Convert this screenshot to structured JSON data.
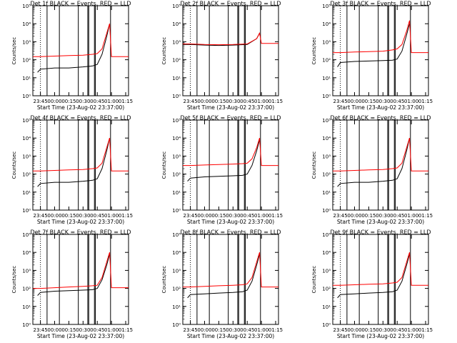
{
  "chart_data": [
    {
      "type": "line",
      "title": "Det 1f BLACK = Events, RED = LLD",
      "xlabel": "Start Time (23-Aug-02 23:37:00)",
      "ylabel": "Counts/sec",
      "yscale": "log",
      "ylim": [
        1,
        100000
      ],
      "xlim": [
        "23:37",
        "01:18"
      ],
      "y_ticks": [
        "10⁰",
        "10¹",
        "10²",
        "10³",
        "10⁴",
        "10⁵"
      ],
      "x_ticks": [
        "23:45",
        "00:00",
        "00:15",
        "00:30",
        "00:45",
        "01:00",
        "01:15"
      ],
      "series": [
        {
          "name": "Events",
          "color": "#000000",
          "x": [
            "23:42",
            "23:45",
            "00:00",
            "00:15",
            "00:30",
            "00:40",
            "00:45",
            "00:50",
            "00:55",
            "00:58"
          ],
          "y": [
            20,
            30,
            35,
            35,
            40,
            45,
            55,
            200,
            2000,
            10000
          ]
        },
        {
          "name": "LLD",
          "color": "#ff0000",
          "x": [
            "23:37",
            "23:45",
            "00:00",
            "00:15",
            "00:30",
            "00:40",
            "00:45",
            "00:50",
            "00:55",
            "00:58",
            "01:00",
            "01:18"
          ],
          "y": [
            150,
            150,
            160,
            170,
            180,
            200,
            220,
            400,
            3000,
            10000,
            150,
            150
          ]
        }
      ]
    },
    {
      "type": "line",
      "title": "Det 2f BLACK = Events, RED = LLD",
      "xlabel": "Start Time (23-Aug-02 23:37:00)",
      "ylabel": "Counts/sec",
      "yscale": "log",
      "ylim": [
        1,
        100000
      ],
      "xlim": [
        "23:37",
        "01:18"
      ],
      "y_ticks": [
        "10⁰",
        "10¹",
        "10²",
        "10³",
        "10⁴",
        "10⁵"
      ],
      "x_ticks": [
        "23:45",
        "00:00",
        "00:15",
        "00:30",
        "00:45",
        "01:00",
        "01:15"
      ],
      "series": [
        {
          "name": "Events",
          "color": "#000000",
          "x": [
            "23:37",
            "23:45",
            "00:00",
            "00:15",
            "00:30",
            "00:45",
            "00:55",
            "00:58"
          ],
          "y": [
            700,
            700,
            650,
            620,
            650,
            700,
            1500,
            3000
          ]
        },
        {
          "name": "LLD",
          "color": "#ff0000",
          "x": [
            "23:37",
            "23:45",
            "00:00",
            "00:15",
            "00:30",
            "00:45",
            "00:55",
            "00:58",
            "01:00",
            "01:18"
          ],
          "y": [
            750,
            750,
            700,
            680,
            700,
            750,
            1500,
            3000,
            800,
            800
          ]
        }
      ]
    },
    {
      "type": "line",
      "title": "Det 3f BLACK = Events, RED = LLD",
      "xlabel": "Start Time (23-Aug-02 23:37:00)",
      "ylabel": "Counts/sec",
      "yscale": "log",
      "ylim": [
        1,
        100000
      ],
      "xlim": [
        "23:37",
        "01:18"
      ],
      "y_ticks": [
        "10⁰",
        "10¹",
        "10²",
        "10³",
        "10⁴",
        "10⁵"
      ],
      "x_ticks": [
        "23:45",
        "00:00",
        "00:15",
        "00:30",
        "00:45",
        "01:00",
        "01:15"
      ],
      "series": [
        {
          "name": "Events",
          "color": "#000000",
          "x": [
            "23:42",
            "23:45",
            "00:00",
            "00:15",
            "00:30",
            "00:40",
            "00:45",
            "00:50",
            "00:55",
            "00:58"
          ],
          "y": [
            40,
            70,
            80,
            85,
            90,
            95,
            110,
            300,
            2500,
            10000
          ]
        },
        {
          "name": "LLD",
          "color": "#ff0000",
          "x": [
            "23:37",
            "23:45",
            "00:00",
            "00:15",
            "00:30",
            "00:40",
            "00:45",
            "00:50",
            "00:55",
            "00:58",
            "01:00",
            "01:18"
          ],
          "y": [
            250,
            250,
            270,
            280,
            300,
            350,
            400,
            700,
            4000,
            15000,
            250,
            250
          ]
        }
      ]
    },
    {
      "type": "line",
      "title": "Det 4f BLACK = Events, RED = LLD",
      "xlabel": "Start Time (23-Aug-02 23:37:00)",
      "ylabel": "Counts/sec",
      "yscale": "log",
      "ylim": [
        1,
        100000
      ],
      "xlim": [
        "23:37",
        "01:18"
      ],
      "y_ticks": [
        "10⁰",
        "10¹",
        "10²",
        "10³",
        "10⁴",
        "10⁵"
      ],
      "x_ticks": [
        "23:45",
        "00:00",
        "00:15",
        "00:30",
        "00:45",
        "01:00",
        "01:15"
      ],
      "series": [
        {
          "name": "Events",
          "color": "#000000",
          "x": [
            "23:42",
            "23:45",
            "00:00",
            "00:15",
            "00:30",
            "00:40",
            "00:45",
            "00:50",
            "00:55",
            "00:58"
          ],
          "y": [
            20,
            30,
            35,
            35,
            40,
            45,
            55,
            200,
            2000,
            10000
          ]
        },
        {
          "name": "LLD",
          "color": "#ff0000",
          "x": [
            "23:37",
            "23:45",
            "00:00",
            "00:15",
            "00:30",
            "00:40",
            "00:45",
            "00:50",
            "00:55",
            "00:58",
            "01:00",
            "01:18"
          ],
          "y": [
            150,
            150,
            160,
            170,
            180,
            200,
            220,
            400,
            3000,
            10000,
            150,
            150
          ]
        }
      ]
    },
    {
      "type": "line",
      "title": "Det 5f BLACK = Events, RED = LLD",
      "xlabel": "Start Time (23-Aug-02 23:37:00)",
      "ylabel": "Counts/sec",
      "yscale": "log",
      "ylim": [
        1,
        100000
      ],
      "xlim": [
        "23:37",
        "01:18"
      ],
      "y_ticks": [
        "10⁰",
        "10¹",
        "10²",
        "10³",
        "10⁴",
        "10⁵"
      ],
      "x_ticks": [
        "23:45",
        "00:00",
        "00:15",
        "00:30",
        "00:45",
        "01:00",
        "01:15"
      ],
      "series": [
        {
          "name": "Events",
          "color": "#000000",
          "x": [
            "23:42",
            "23:45",
            "00:00",
            "00:15",
            "00:30",
            "00:40",
            "00:45",
            "00:50",
            "00:55",
            "00:58"
          ],
          "y": [
            40,
            60,
            70,
            75,
            80,
            85,
            100,
            300,
            2000,
            8000
          ]
        },
        {
          "name": "LLD",
          "color": "#ff0000",
          "x": [
            "23:37",
            "23:45",
            "00:00",
            "00:15",
            "00:30",
            "00:40",
            "00:45",
            "00:50",
            "00:55",
            "00:58",
            "01:00",
            "01:18"
          ],
          "y": [
            300,
            300,
            320,
            340,
            360,
            380,
            400,
            700,
            3000,
            10000,
            300,
            300
          ]
        }
      ]
    },
    {
      "type": "line",
      "title": "Det 6f BLACK = Events, RED = LLD",
      "xlabel": "Start Time (23-Aug-02 23:37:00)",
      "ylabel": "Counts/sec",
      "yscale": "log",
      "ylim": [
        1,
        100000
      ],
      "xlim": [
        "23:37",
        "01:18"
      ],
      "y_ticks": [
        "10⁰",
        "10¹",
        "10²",
        "10³",
        "10⁴",
        "10⁵"
      ],
      "x_ticks": [
        "23:45",
        "00:00",
        "00:15",
        "00:30",
        "00:45",
        "01:00",
        "01:15"
      ],
      "series": [
        {
          "name": "Events",
          "color": "#000000",
          "x": [
            "23:42",
            "23:45",
            "00:00",
            "00:15",
            "00:30",
            "00:40",
            "00:45",
            "00:50",
            "00:55",
            "00:58"
          ],
          "y": [
            20,
            30,
            35,
            35,
            40,
            45,
            55,
            200,
            2000,
            10000
          ]
        },
        {
          "name": "LLD",
          "color": "#ff0000",
          "x": [
            "23:37",
            "23:45",
            "00:00",
            "00:15",
            "00:30",
            "00:40",
            "00:45",
            "00:50",
            "00:55",
            "00:58",
            "01:00",
            "01:18"
          ],
          "y": [
            150,
            150,
            160,
            170,
            180,
            200,
            220,
            400,
            3000,
            10000,
            150,
            150
          ]
        }
      ]
    },
    {
      "type": "line",
      "title": "Det 7f BLACK = Events, RED = LLD",
      "xlabel": "Start Time (23-Aug-02 23:37:00)",
      "ylabel": "Counts/sec",
      "yscale": "log",
      "ylim": [
        1,
        100000
      ],
      "xlim": [
        "23:37",
        "01:18"
      ],
      "y_ticks": [
        "10⁰",
        "10¹",
        "10²",
        "10³",
        "10⁴",
        "10⁵"
      ],
      "x_ticks": [
        "23:45",
        "00:00",
        "00:15",
        "00:30",
        "00:45",
        "01:00",
        "01:15"
      ],
      "series": [
        {
          "name": "Events",
          "color": "#000000",
          "x": [
            "23:42",
            "23:45",
            "00:00",
            "00:15",
            "00:30",
            "00:40",
            "00:45",
            "00:50",
            "00:55",
            "00:58"
          ],
          "y": [
            40,
            60,
            70,
            75,
            80,
            85,
            100,
            300,
            2000,
            8000
          ]
        },
        {
          "name": "LLD",
          "color": "#ff0000",
          "x": [
            "23:37",
            "23:45",
            "00:00",
            "00:15",
            "00:30",
            "00:40",
            "00:45",
            "00:50",
            "00:55",
            "00:58",
            "01:00",
            "01:18"
          ],
          "y": [
            100,
            100,
            110,
            120,
            130,
            140,
            150,
            400,
            3000,
            10000,
            110,
            110
          ]
        }
      ]
    },
    {
      "type": "line",
      "title": "Det 8f BLACK = Events, RED = LLD",
      "xlabel": "Start Time (23-Aug-02 23:37:00)",
      "ylabel": "Counts/sec",
      "yscale": "log",
      "ylim": [
        1,
        100000
      ],
      "xlim": [
        "23:37",
        "01:18"
      ],
      "y_ticks": [
        "10⁰",
        "10¹",
        "10²",
        "10³",
        "10⁴",
        "10⁵"
      ],
      "x_ticks": [
        "23:45",
        "00:00",
        "00:15",
        "00:30",
        "00:45",
        "01:00",
        "01:15"
      ],
      "series": [
        {
          "name": "Events",
          "color": "#000000",
          "x": [
            "23:42",
            "23:45",
            "00:00",
            "00:15",
            "00:30",
            "00:40",
            "00:45",
            "00:50",
            "00:55",
            "00:58"
          ],
          "y": [
            30,
            45,
            50,
            55,
            60,
            65,
            80,
            250,
            2000,
            8000
          ]
        },
        {
          "name": "LLD",
          "color": "#ff0000",
          "x": [
            "23:37",
            "23:45",
            "00:00",
            "00:15",
            "00:30",
            "00:40",
            "00:45",
            "00:50",
            "00:55",
            "00:58",
            "01:00",
            "01:18"
          ],
          "y": [
            120,
            120,
            130,
            140,
            150,
            160,
            180,
            400,
            3000,
            10000,
            120,
            120
          ]
        }
      ]
    },
    {
      "type": "line",
      "title": "Det 9f BLACK = Events, RED = LLD",
      "xlabel": "Start Time (23-Aug-02 23:37:00)",
      "ylabel": "Counts/sec",
      "yscale": "log",
      "ylim": [
        1,
        100000
      ],
      "xlim": [
        "23:37",
        "01:18"
      ],
      "y_ticks": [
        "10⁰",
        "10¹",
        "10²",
        "10³",
        "10⁴",
        "10⁵"
      ],
      "x_ticks": [
        "23:45",
        "00:00",
        "00:15",
        "00:30",
        "00:45",
        "01:00",
        "01:15"
      ],
      "series": [
        {
          "name": "Events",
          "color": "#000000",
          "x": [
            "23:42",
            "23:45",
            "00:00",
            "00:15",
            "00:30",
            "00:40",
            "00:45",
            "00:50",
            "00:55",
            "00:58"
          ],
          "y": [
            30,
            45,
            50,
            55,
            60,
            65,
            80,
            250,
            2000,
            8000
          ]
        },
        {
          "name": "LLD",
          "color": "#ff0000",
          "x": [
            "23:37",
            "23:45",
            "00:00",
            "00:15",
            "00:30",
            "00:40",
            "00:45",
            "00:50",
            "00:55",
            "00:58",
            "01:00",
            "01:18"
          ],
          "y": [
            150,
            150,
            160,
            170,
            180,
            200,
            220,
            400,
            3000,
            10000,
            150,
            150
          ]
        }
      ]
    }
  ],
  "markers": {
    "dotted_x": [
      "23:45"
    ],
    "solid_x": [
      "23:52",
      "00:05",
      "00:25",
      "00:35",
      "00:36",
      "00:42",
      "00:43",
      "00:59"
    ],
    "tick_marks_x": [
      "00:00",
      "00:45",
      "01:00"
    ]
  }
}
